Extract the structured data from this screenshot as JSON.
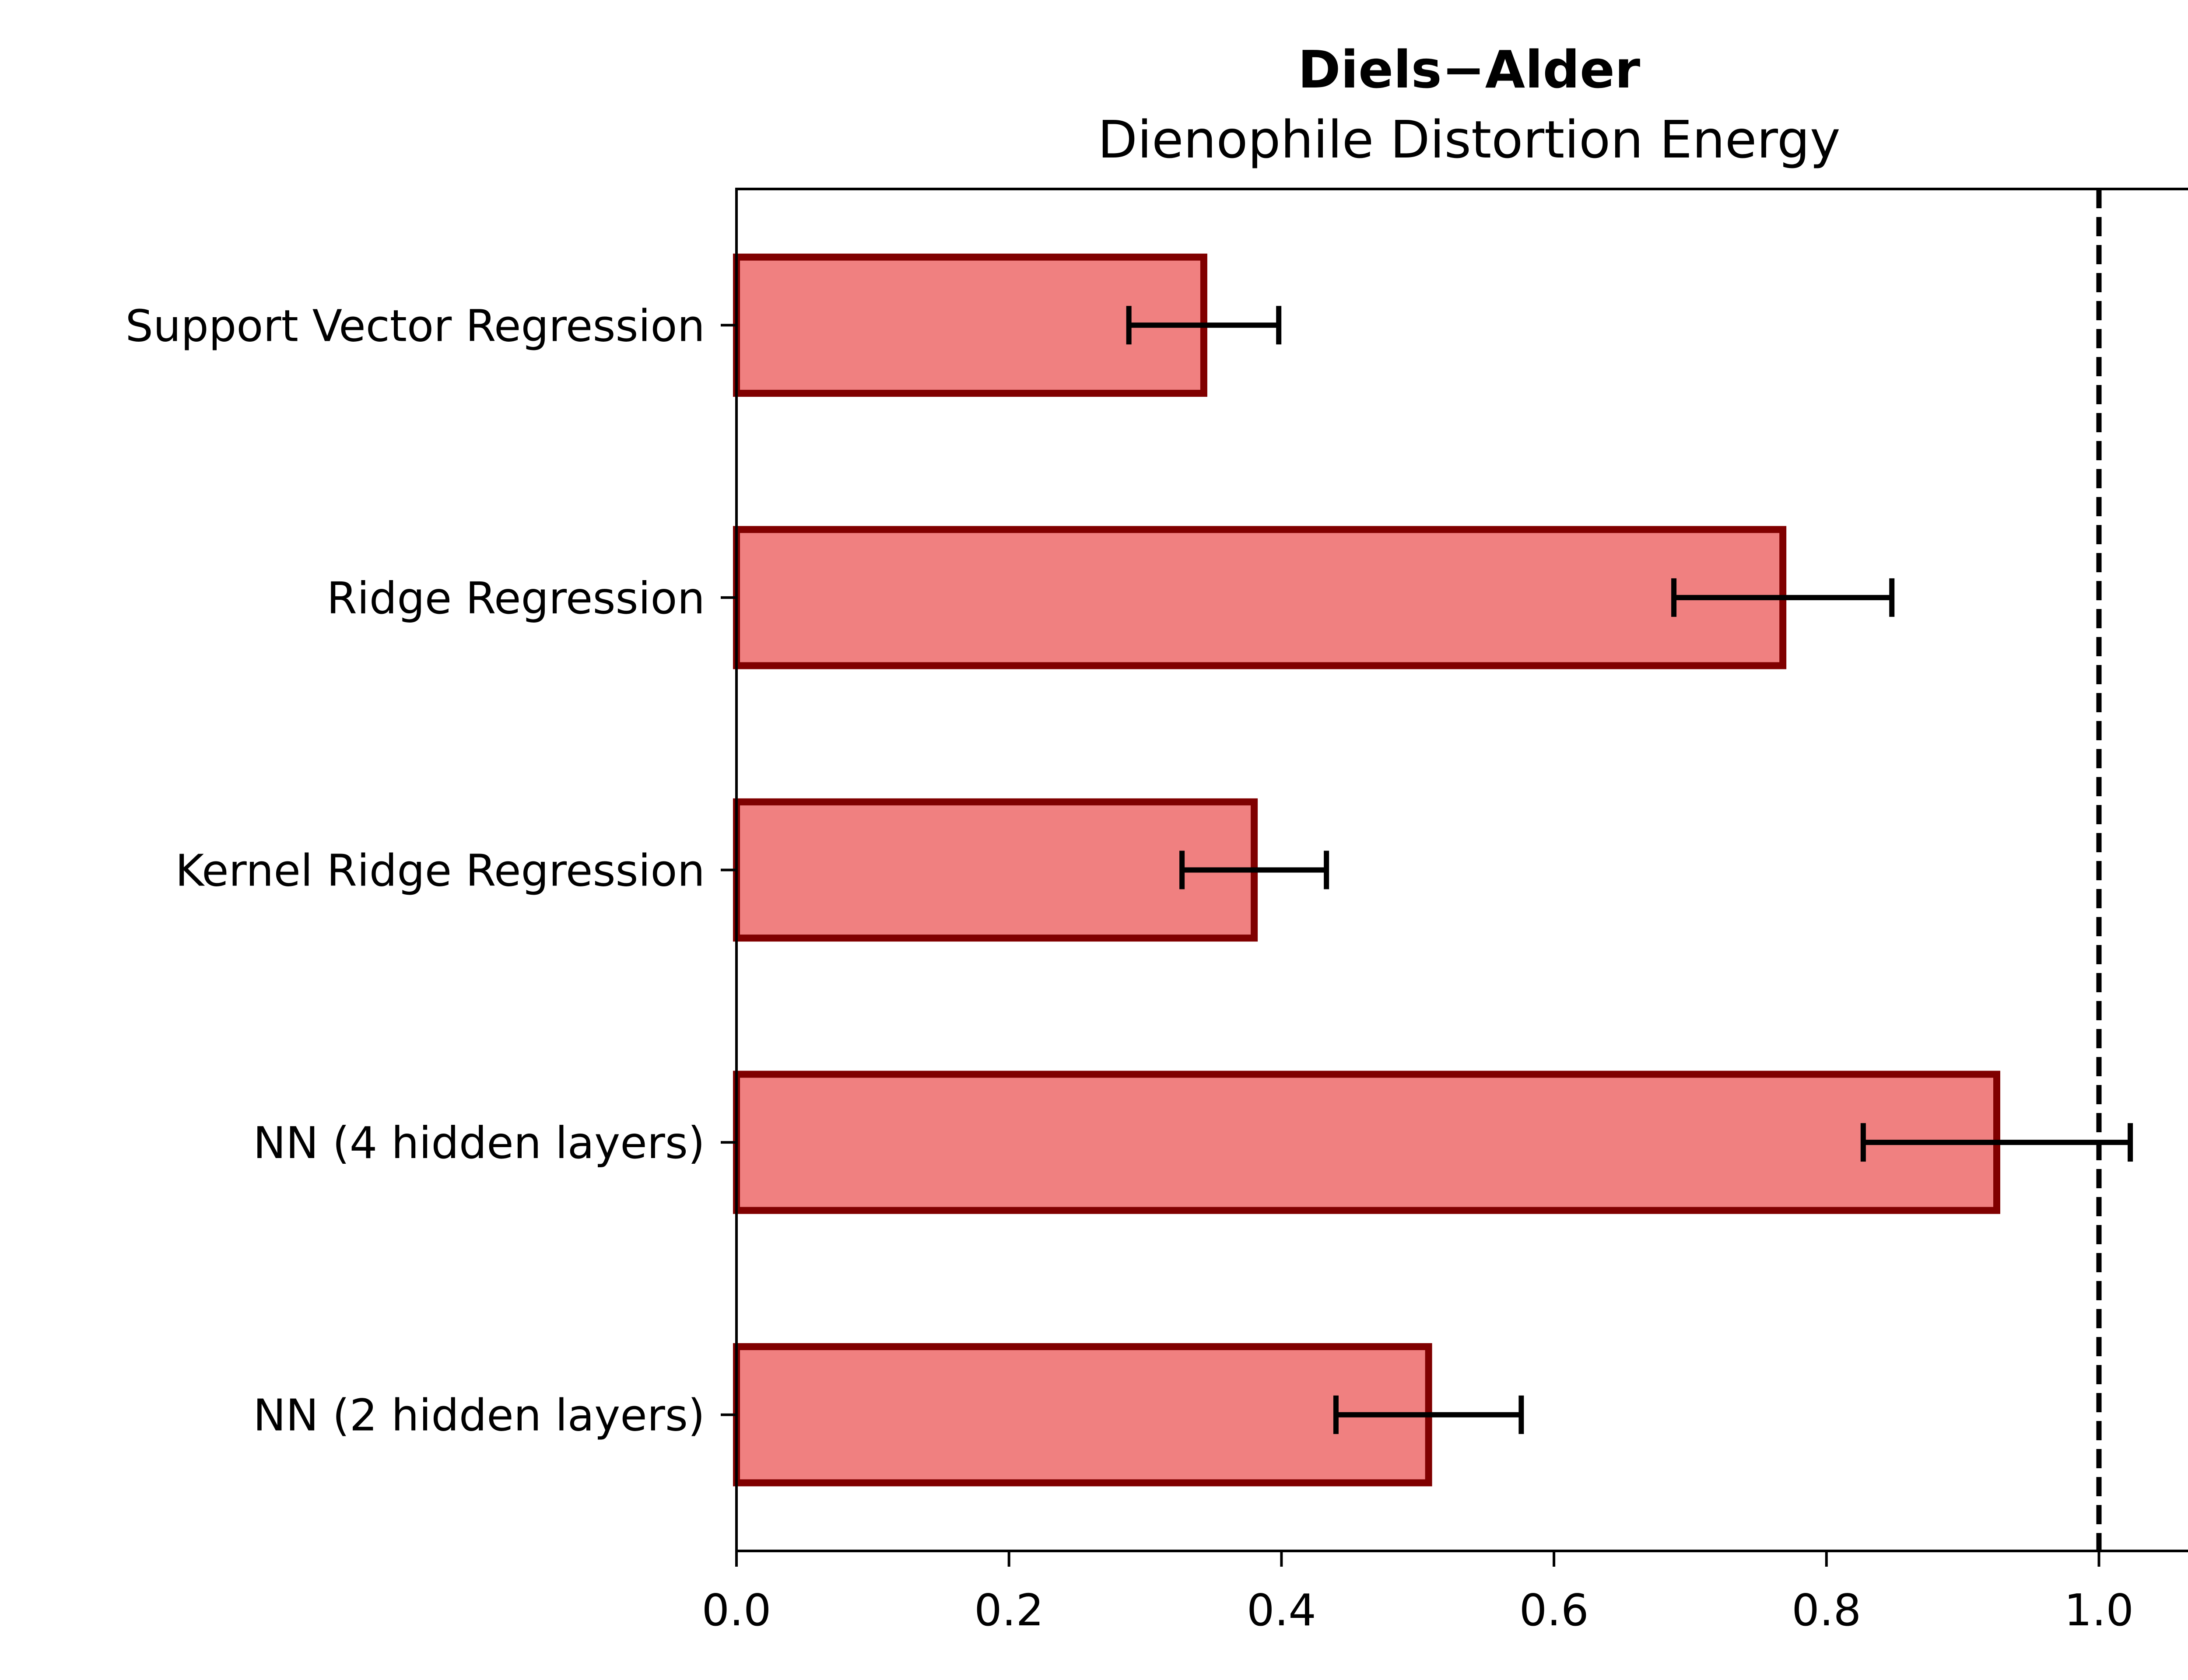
{
  "chart_data": {
    "type": "bar",
    "orientation": "horizontal",
    "title": "Diels−Alder",
    "subtitle": "Dienophile Distortion Energy",
    "xlabel": "",
    "ylabel": "",
    "categories": [
      "Support Vector Regression",
      "Ridge Regression",
      "Kernel Ridge Regression",
      "NN (4 hidden layers)",
      "NN (2 hidden layers)"
    ],
    "values": [
      0.343,
      0.768,
      0.38,
      0.925,
      0.508
    ],
    "errors": [
      0.055,
      0.08,
      0.053,
      0.098,
      0.068
    ],
    "xlim": [
      0.0,
      1.075
    ],
    "xticks": [
      "0.0",
      "0.2",
      "0.4",
      "0.6",
      "0.8",
      "1.0"
    ],
    "reference_line": 1.0,
    "grid": false,
    "colors": {
      "bar_fill": "#f08080",
      "bar_edge": "#800000",
      "error_bar": "#000000",
      "reference_line": "#000000"
    }
  }
}
